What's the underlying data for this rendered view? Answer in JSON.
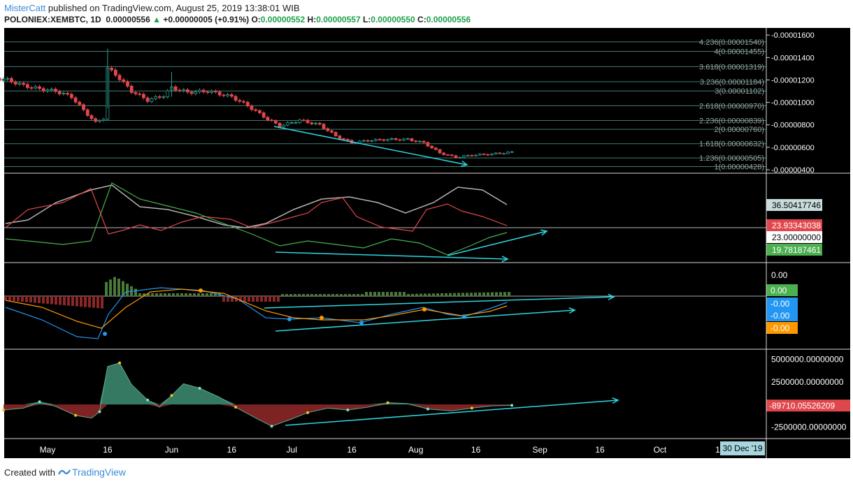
{
  "header": {
    "username": "MisterCatt",
    "published_text": "published on TradingView.com, August 25, 2019 13:38:01 WIB",
    "symbol": "POLONIEX:XEMBTC, 1D",
    "last": "0.00000556",
    "change": "+0.00000005 (+0.91%)",
    "o_label": "O:",
    "o_value": "0.00000552",
    "h_label": "H:",
    "h_value": "0.00000557",
    "l_label": "L:",
    "l_value": "0.00000550",
    "c_label": "C:",
    "c_value": "0.00000556"
  },
  "footer": {
    "created_with": "Created with",
    "brand": "TradingView"
  },
  "colors": {
    "background": "#000000",
    "up": "#2e9e8f",
    "down": "#e0474c",
    "fib": "#5bb3a8",
    "arrow": "#2fd5e0",
    "rsi_gray": "#b2b2b2",
    "rsi_red": "#e0474c",
    "rsi_green": "#4caf50",
    "macd_blue": "#2196f3",
    "macd_orange": "#ff9800",
    "osc_green": "#3e8e73",
    "osc_red": "#8b2727"
  },
  "chart_data": [
    {
      "type": "candlestick",
      "title": "POLONIEX:XEMBTC, 1D",
      "y_ticks": [
        "0.00001600",
        "0.00001400",
        "0.00001200",
        "0.00001000",
        "0.00000800",
        "0.00000600",
        "0.00000400"
      ],
      "ylim": [
        4e-06,
        1.62e-05
      ],
      "fib_levels": [
        {
          "label": "4.236",
          "value": "0.00001540"
        },
        {
          "label": "4",
          "value": "0.00001455"
        },
        {
          "label": "3.618",
          "value": "0.00001319"
        },
        {
          "label": "3.236",
          "value": "0.00001184"
        },
        {
          "label": "3",
          "value": "0.00001102"
        },
        {
          "label": "2.618",
          "value": "0.00000970"
        },
        {
          "label": "2.236",
          "value": "0.00000839"
        },
        {
          "label": "2",
          "value": "0.00000760"
        },
        {
          "label": "1.618",
          "value": "0.00000632"
        },
        {
          "label": "1.236",
          "value": "0.00000505"
        },
        {
          "label": "1",
          "value": "0.00000428"
        }
      ],
      "close_path": [
        [
          "Apr 17",
          1.22e-05
        ],
        [
          "Apr 21",
          1.2e-05
        ],
        [
          "Apr 25",
          1.15e-05
        ],
        [
          "Apr 29",
          1.12e-05
        ],
        [
          "May 3",
          1.1e-05
        ],
        [
          "May 7",
          1.05e-05
        ],
        [
          "May 10",
          9.3e-06
        ],
        [
          "May 13",
          8.2e-06
        ],
        [
          "May 15",
          8.6e-06
        ],
        [
          "May 16",
          1.3e-05
        ],
        [
          "May 18",
          1.25e-05
        ],
        [
          "May 22",
          1.1e-05
        ],
        [
          "May 26",
          1.02e-05
        ],
        [
          "May 30",
          1.06e-05
        ],
        [
          "Jun 1",
          1.13e-05
        ],
        [
          "Jun 5",
          1.09e-05
        ],
        [
          "Jun 10",
          1.1e-05
        ],
        [
          "Jun 16",
          1.05e-05
        ],
        [
          "Jun 20",
          9.7e-06
        ],
        [
          "Jun 25",
          8.5e-06
        ],
        [
          "Jun 28",
          7.9e-06
        ],
        [
          "Jul 3",
          8.4e-06
        ],
        [
          "Jul 8",
          8e-06
        ],
        [
          "Jul 12",
          7e-06
        ],
        [
          "Jul 16",
          6.4e-06
        ],
        [
          "Jul 20",
          6.6e-06
        ],
        [
          "Jul 25",
          6.7e-06
        ],
        [
          "Jul 30",
          6.7e-06
        ],
        [
          "Aug 3",
          6.4e-06
        ],
        [
          "Aug 7",
          5.5e-06
        ],
        [
          "Aug 11",
          5.1e-06
        ],
        [
          "Aug 15",
          5.3e-06
        ],
        [
          "Aug 20",
          5.4e-06
        ],
        [
          "Aug 25",
          5.56e-06
        ]
      ],
      "x_ticks": [
        "May",
        "16",
        "Jun",
        "16",
        "Jul",
        "16",
        "Aug",
        "16",
        "Sep",
        "16",
        "Oct",
        "16"
      ],
      "crosshair_date": "30 Dec '19"
    },
    {
      "type": "line",
      "panel": "rsi",
      "values": [
        "36.50417746",
        "23.93343038",
        "23.00000000",
        "19.78187461"
      ],
      "colors": [
        "gray",
        "red",
        "white",
        "green"
      ]
    },
    {
      "type": "bar",
      "panel": "macd",
      "y_ticks": [
        "0.00"
      ],
      "values": [
        "0.00",
        "-0.00",
        "-0.00",
        "-0.00"
      ],
      "colors": [
        "green",
        "blue",
        "blue",
        "orange"
      ]
    },
    {
      "type": "area",
      "panel": "oscillator",
      "y_ticks": [
        "5000000.00000000",
        "2500000.00000000",
        "-2500000.00000000"
      ],
      "ylim": [
        -3000000,
        5500000
      ],
      "current_value": "-89710.05526209",
      "points": [
        [
          "Apr 20",
          -600000
        ],
        [
          "Apr 25",
          -400000
        ],
        [
          "Apr 29",
          300000
        ],
        [
          "May 3",
          -200000
        ],
        [
          "May 8",
          -1200000
        ],
        [
          "May 12",
          -1500000
        ],
        [
          "May 14",
          -800000
        ],
        [
          "May 16",
          4200000
        ],
        [
          "May 19",
          4600000
        ],
        [
          "May 22",
          2200000
        ],
        [
          "May 26",
          500000
        ],
        [
          "May 29",
          -300000
        ],
        [
          "Jun 1",
          1000000
        ],
        [
          "Jun 4",
          2300000
        ],
        [
          "Jun 8",
          1800000
        ],
        [
          "Jun 13",
          800000
        ],
        [
          "Jun 17",
          -300000
        ],
        [
          "Jun 22",
          -1500000
        ],
        [
          "Jun 26",
          -2400000
        ],
        [
          "Jul 1",
          -1600000
        ],
        [
          "Jul 5",
          -900000
        ],
        [
          "Jul 10",
          -400000
        ],
        [
          "Jul 15",
          -600000
        ],
        [
          "Jul 20",
          -300000
        ],
        [
          "Jul 25",
          200000
        ],
        [
          "Jul 30",
          100000
        ],
        [
          "Aug 4",
          -500000
        ],
        [
          "Aug 10",
          -700000
        ],
        [
          "Aug 15",
          -400000
        ],
        [
          "Aug 20",
          -150000
        ],
        [
          "Aug 25",
          -89710
        ]
      ]
    }
  ]
}
